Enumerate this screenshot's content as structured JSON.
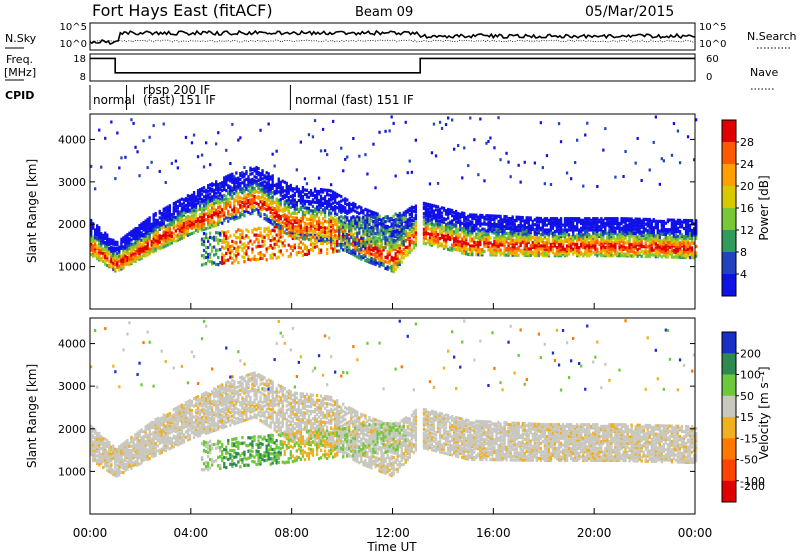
{
  "header": {
    "station": "Fort Hays East (fitACF)",
    "beam": "Beam 09",
    "date": "05/Mar/2015"
  },
  "chart_data": [
    {
      "type": "line",
      "panel": "noise",
      "left_label": "N.Sky",
      "right_label": "N.Search",
      "left_ticks": [
        "10^5",
        "10^0"
      ],
      "right_ticks": [
        "10^5",
        "10^0"
      ]
    },
    {
      "type": "line",
      "panel": "frequency",
      "left_label_1": "Freq.",
      "left_label_2": "[MHz]",
      "right_label": "Nave",
      "left_ticks": [
        "18",
        "8"
      ],
      "right_ticks": [
        "60",
        "0"
      ],
      "freq_steps": [
        {
          "t0": 0.0,
          "t1": 1.0,
          "value": 17
        },
        {
          "t0": 1.0,
          "t1": 13.1,
          "value": 11
        },
        {
          "t0": 13.1,
          "t1": 24.0,
          "value": 17
        }
      ]
    },
    {
      "type": "table",
      "panel": "cpid",
      "label": "CPID",
      "segments": [
        {
          "label": "normal",
          "t": 0.1
        },
        {
          "label": "rbsp 200 IF",
          "t": 2.15
        },
        {
          "label": "(fast) 151 IF",
          "t": 1.75
        },
        {
          "label": "normal (fast) 151 IF",
          "t": 8.3
        }
      ],
      "dividers": [
        1.45,
        7.95
      ]
    },
    {
      "type": "heatmap",
      "panel": "power",
      "xlim": [
        0,
        24
      ],
      "ylim": [
        0,
        4600
      ],
      "ylabel": "Slant Range [km]",
      "yticks": [
        1000,
        2000,
        3000,
        4000
      ],
      "colorbar_label": "Power [dB]",
      "colorbar_ticks": [
        "28",
        "24",
        "20",
        "16",
        "12",
        "8",
        "4"
      ],
      "colorbar_colors": [
        "#e00000",
        "#ff5a00",
        "#ffa000",
        "#d8c800",
        "#78c838",
        "#2f9c5c",
        "#2242c0",
        "#1010e8"
      ],
      "echo_band": [
        {
          "t": 0.0,
          "range": 1550,
          "width": 600
        },
        {
          "t": 1.0,
          "range": 1100,
          "width": 500
        },
        {
          "t": 2.5,
          "range": 1650,
          "width": 650
        },
        {
          "t": 4.0,
          "range": 2100,
          "width": 700
        },
        {
          "t": 5.5,
          "range": 2450,
          "width": 800
        },
        {
          "t": 6.5,
          "range": 2650,
          "width": 800
        },
        {
          "t": 8.0,
          "range": 2100,
          "width": 900
        },
        {
          "t": 9.5,
          "range": 2000,
          "width": 900
        },
        {
          "t": 10.7,
          "range": 1600,
          "width": 900
        },
        {
          "t": 12.0,
          "range": 1300,
          "width": 900
        },
        {
          "t": 13.0,
          "range": 1900,
          "width": 700
        },
        {
          "t": 15.0,
          "range": 1600,
          "width": 700
        },
        {
          "t": 18.0,
          "range": 1550,
          "width": 650
        },
        {
          "t": 21.0,
          "range": 1550,
          "width": 650
        },
        {
          "t": 24.0,
          "range": 1500,
          "width": 650
        }
      ]
    },
    {
      "type": "heatmap",
      "panel": "velocity",
      "xlim": [
        0,
        24
      ],
      "ylim": [
        0,
        4600
      ],
      "ylabel": "Slant Range [km]",
      "xlabel": "Time UT",
      "xticks": [
        "00:00",
        "04:00",
        "08:00",
        "12:00",
        "16:00",
        "20:00",
        "00:00"
      ],
      "yticks": [
        1000,
        2000,
        3000,
        4000
      ],
      "colorbar_label": "Velocity [m s⁻¹]",
      "colorbar_ticks": [
        "200",
        "100",
        "50",
        "15",
        "-15",
        "-50",
        "-100",
        "-200"
      ],
      "colorbar_colors": [
        "#1830c8",
        "#2e8a4e",
        "#6ec83c",
        "#c8c8c0",
        "#f0b020",
        "#ff7800",
        "#ff4400",
        "#e00000"
      ]
    }
  ]
}
